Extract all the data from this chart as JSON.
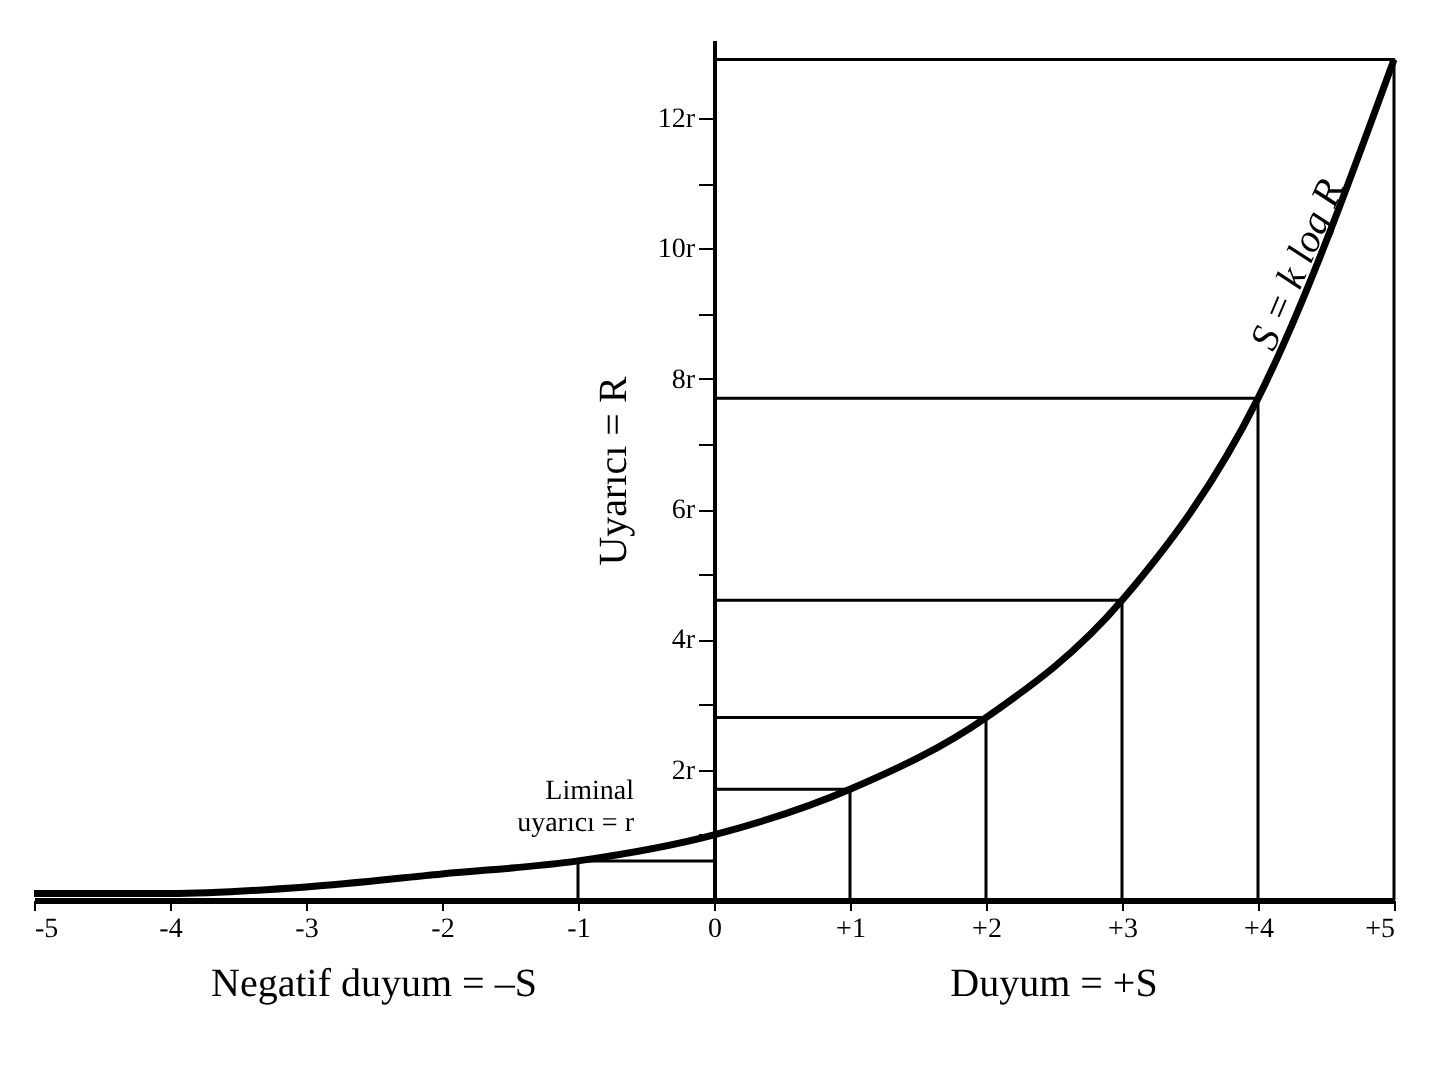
{
  "chart_data": {
    "type": "line",
    "xlim": [
      -5,
      5
    ],
    "ylim": [
      0,
      13.2
    ],
    "xticks": [
      {
        "value": -5,
        "label": "-5"
      },
      {
        "value": -4,
        "label": "-4"
      },
      {
        "value": -3,
        "label": "-3"
      },
      {
        "value": -2,
        "label": "-2"
      },
      {
        "value": -1,
        "label": "-1"
      },
      {
        "value": 0,
        "label": "0"
      },
      {
        "value": 1,
        "label": "+1"
      },
      {
        "value": 2,
        "label": "+2"
      },
      {
        "value": 3,
        "label": "+3"
      },
      {
        "value": 4,
        "label": "+4"
      },
      {
        "value": 5,
        "label": "+5"
      }
    ],
    "yticks": [
      {
        "value": 1,
        "label": null
      },
      {
        "value": 2,
        "label": "2r"
      },
      {
        "value": 3,
        "label": null
      },
      {
        "value": 4,
        "label": "4r"
      },
      {
        "value": 5,
        "label": null
      },
      {
        "value": 6,
        "label": "6r"
      },
      {
        "value": 7,
        "label": null
      },
      {
        "value": 8,
        "label": "8r"
      },
      {
        "value": 9,
        "label": null
      },
      {
        "value": 10,
        "label": "10r"
      },
      {
        "value": 11,
        "label": null
      },
      {
        "value": 12,
        "label": "12r"
      }
    ],
    "ylabel": "Uyarıcı = R",
    "grid": false,
    "marker": "none",
    "line_style": "solid",
    "series": [
      {
        "name": "S = k log R",
        "color": "#000000",
        "x": [
          -5,
          -4,
          -3,
          -2,
          -1,
          0,
          1,
          2,
          3,
          4,
          5
        ],
        "values": [
          0.1,
          0.1,
          0.2,
          0.4,
          0.6,
          1.0,
          1.7,
          2.8,
          4.6,
          7.7,
          12.9
        ]
      },
      {
        "color": "#000000",
        "x": [
          0,
          1,
          1
        ],
        "values": [
          1.7,
          1.7,
          0
        ]
      },
      {
        "color": "#000000",
        "x": [
          0,
          2,
          2
        ],
        "values": [
          2.8,
          2.8,
          0
        ]
      },
      {
        "color": "#000000",
        "x": [
          0,
          3,
          3
        ],
        "values": [
          4.6,
          4.6,
          0
        ]
      },
      {
        "color": "#000000",
        "x": [
          0,
          4,
          4
        ],
        "values": [
          7.7,
          7.7,
          0
        ]
      },
      {
        "color": "#000000",
        "x": [
          0,
          5,
          5
        ],
        "values": [
          12.9,
          12.9,
          0
        ]
      },
      {
        "color": "#000000",
        "x": [
          -1,
          -1,
          0
        ],
        "values": [
          0,
          0.6,
          0.6
        ]
      }
    ],
    "annotations": [
      {
        "text": "Liminal\nuyarıcı = r",
        "x": 0,
        "y": 1.0
      },
      "Negatif duyum = –S",
      "Duyum = +S"
    ]
  }
}
